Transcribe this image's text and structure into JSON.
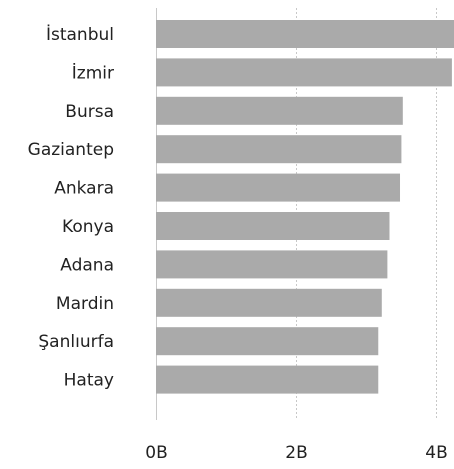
{
  "chart_data": {
    "type": "bar",
    "orientation": "horizontal",
    "categories": [
      "İstanbul",
      "İzmir",
      "Bursa",
      "Gaziantep",
      "Ankara",
      "Konya",
      "Adana",
      "Mardin",
      "Şanlıurfa",
      "Hatay"
    ],
    "values": [
      4.25,
      4.22,
      3.52,
      3.5,
      3.48,
      3.33,
      3.3,
      3.22,
      3.17,
      3.17
    ],
    "xlim": [
      0,
      4.25
    ],
    "x_ticks": [
      {
        "value": 0,
        "label": "0B"
      },
      {
        "value": 2,
        "label": "2B"
      },
      {
        "value": 4,
        "label": "4B"
      }
    ],
    "grid": "vertical-dotted",
    "bar_color": "#aaaaaa",
    "legend": "none"
  }
}
